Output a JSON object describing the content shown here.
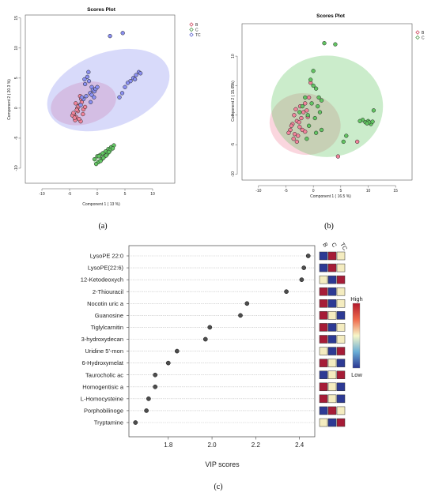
{
  "panels": {
    "a": {
      "caption": "(a)"
    },
    "b": {
      "caption": "(b)"
    },
    "c": {
      "caption": "(c)"
    }
  },
  "colors": {
    "B": "#f0839a",
    "C": "#62c462",
    "TC": "#8a8ff0",
    "B_dark": "#c8364f",
    "C_dark": "#3c8e3c",
    "TC_dark": "#4e57c9"
  },
  "chart_data": [
    {
      "type": "scatter",
      "title": "Scores Plot",
      "xlabel": "Component 1 ( 13 %)",
      "ylabel": "Component 2 ( 20.3 %)",
      "xlim": [
        -13,
        14
      ],
      "ylim": [
        -12.5,
        15.5
      ],
      "xticks": [
        -10,
        -5,
        0,
        5,
        10
      ],
      "yticks": [
        -10,
        -5,
        0,
        5,
        10,
        15
      ],
      "legend_position": "top-right",
      "series": [
        {
          "name": "B",
          "color": "#f0839a",
          "x": [
            -4.2,
            -3.8,
            -3.5,
            -4.0,
            -3.2,
            -2.8,
            -3.6,
            -4.5,
            -3.0,
            -2.5,
            -3.9,
            -4.3,
            -2.9,
            -3.3,
            -3.7,
            -2.2,
            -4.1,
            -3.4,
            -2.6,
            -3.1
          ],
          "y": [
            -1.0,
            -1.5,
            -0.5,
            -2.0,
            0.5,
            1.0,
            0.0,
            -1.2,
            -2.2,
            -0.2,
            0.8,
            -0.8,
            1.5,
            -1.8,
            -0.3,
            0.2,
            -1.6,
            0.3,
            -1.0,
            2.0
          ],
          "ellipse": {
            "cx": -2.5,
            "cy": 0.8,
            "rx": 6.0,
            "ry": 3.5,
            "angle": 14
          }
        },
        {
          "name": "C",
          "color": "#62c462",
          "x": [
            -0.5,
            0.0,
            0.5,
            1.0,
            1.5,
            2.0,
            2.5,
            3.0,
            0.2,
            0.8,
            1.3,
            1.8,
            2.3,
            -0.2,
            0.6,
            1.1,
            1.6,
            2.1,
            2.8,
            0.3
          ],
          "y": [
            -8.5,
            -8.0,
            -7.8,
            -7.5,
            -7.2,
            -6.8,
            -6.5,
            -6.2,
            -9.0,
            -8.5,
            -8.0,
            -7.6,
            -7.0,
            -9.3,
            -8.8,
            -8.3,
            -7.9,
            -7.3,
            -6.7,
            -8.0
          ],
          "ellipse": {
            "cx": 1.1,
            "cy": -7.9,
            "rx": 2.2,
            "ry": 0.6,
            "angle": 38
          }
        },
        {
          "name": "TC",
          "color": "#8a8ff0",
          "x": [
            2.3,
            4.6,
            -2.3,
            -1.8,
            -1.5,
            -1.0,
            -0.8,
            -0.5,
            -1.3,
            -2.0,
            -2.5,
            -1.2,
            -0.3,
            0.0,
            -1.6,
            -2.2,
            -1.0,
            -0.6,
            6.0,
            6.5,
            7.0,
            7.5,
            6.8,
            7.8,
            5.5,
            5.0,
            4.5,
            4.0,
            -3.0,
            -2.8
          ],
          "y": [
            12.0,
            12.5,
            4.8,
            5.2,
            4.5,
            3.5,
            3.0,
            2.8,
            2.5,
            2.0,
            1.5,
            1.0,
            3.2,
            3.5,
            6.0,
            4.0,
            2.2,
            1.8,
            4.5,
            5.0,
            5.5,
            6.0,
            4.8,
            5.8,
            4.2,
            3.5,
            2.5,
            1.8,
            0.5,
            1.8
          ],
          "ellipse": {
            "cx": 2.0,
            "cy": 3.0,
            "rx": 11.5,
            "ry": 6.2,
            "angle": 20
          }
        }
      ]
    },
    {
      "type": "scatter",
      "title": "Scores Plot",
      "xlabel": "Component 1 ( 16.5 %)",
      "ylabel": "Component 2 ( 15.6 %)",
      "xlim": [
        -13,
        18
      ],
      "ylim": [
        -11,
        15.5
      ],
      "xticks": [
        -10,
        -5,
        0,
        5,
        10,
        15
      ],
      "yticks": [
        -10,
        -5,
        0,
        5,
        10
      ],
      "legend_position": "top-right",
      "series": [
        {
          "name": "B",
          "color": "#f0839a",
          "x": [
            -4.2,
            -3.8,
            -3.0,
            -2.5,
            -4.5,
            -3.5,
            -1.8,
            -2.2,
            -3.2,
            -4.0,
            -1.5,
            -2.8,
            -3.6,
            -1.0,
            -2.0,
            -0.5,
            -3.0,
            -2.4,
            -1.2,
            4.5,
            8.0,
            -0.8,
            -1.5,
            -2.6,
            -3.4
          ],
          "y": [
            -2.5,
            -1.5,
            -1.0,
            -2.0,
            -3.0,
            0.0,
            0.5,
            -0.5,
            1.0,
            -1.8,
            2.0,
            -3.5,
            -4.0,
            -0.3,
            -2.5,
            5.5,
            -4.5,
            1.5,
            0.8,
            -7.0,
            -4.5,
            3.0,
            -2.8,
            -1.2,
            -3.2
          ],
          "ellipse": {
            "cx": -1.5,
            "cy": -1.5,
            "rx": 6.5,
            "ry": 5.2,
            "angle": -10
          }
        },
        {
          "name": "C",
          "color": "#62c462",
          "x": [
            2.0,
            4.0,
            0.0,
            -0.5,
            0.5,
            1.0,
            1.5,
            0.8,
            -1.0,
            0.3,
            -0.3,
            1.2,
            9.5,
            10.0,
            10.5,
            11.0,
            9.0,
            8.5,
            10.2,
            9.8,
            6.0,
            5.5,
            -1.5,
            -2.0,
            -2.5,
            0.0,
            1.5,
            -0.8,
            0.5,
            -1.2,
            10.8
          ],
          "y": [
            12.2,
            12.0,
            7.5,
            6.0,
            4.5,
            3.0,
            2.5,
            1.5,
            0.0,
            -0.5,
            2.0,
            0.5,
            -1.2,
            -1.0,
            -1.5,
            0.8,
            -0.8,
            -1.0,
            -1.2,
            -1.4,
            -3.5,
            -4.5,
            3.0,
            1.5,
            0.5,
            5.0,
            -2.5,
            -1.8,
            -3.0,
            -4.0,
            -1.1
          ],
          "ellipse": {
            "cx": 2.5,
            "cy": 1.5,
            "rx": 10.2,
            "ry": 8.6,
            "angle": 0
          }
        }
      ]
    },
    {
      "type": "dot",
      "xlabel": "VIP scores",
      "xlim": [
        1.62,
        2.47
      ],
      "xticks": [
        1.8,
        2.0,
        2.2,
        2.4
      ],
      "categories": [
        "LysoPE 22:0",
        "LysoPE(22:6)",
        "12-Ketodeoxych",
        "2-Thiouracil",
        "Nocotin uric a",
        "Guanosine",
        "Tiglylcarnitin",
        "3-hydroxydecan",
        "Uridine 5'-mon",
        "6-Hydroxymelat",
        "Taurocholic ac",
        "Homogentisic a",
        "L-Homocysteine",
        "Porphobilinoge",
        "Tryptamine"
      ],
      "values": [
        2.44,
        2.42,
        2.41,
        2.34,
        2.16,
        2.13,
        1.99,
        1.97,
        1.84,
        1.8,
        1.74,
        1.74,
        1.71,
        1.7,
        1.65
      ],
      "heatmap_columns": [
        "B",
        "C",
        "TC"
      ],
      "heatmap_levels": [
        [
          0,
          1,
          0.5
        ],
        [
          0,
          1,
          0.5
        ],
        [
          0.5,
          0,
          1
        ],
        [
          1,
          0,
          0.5
        ],
        [
          1,
          0,
          0.5
        ],
        [
          1,
          0.5,
          0
        ],
        [
          1,
          0,
          0.5
        ],
        [
          1,
          0,
          0.5
        ],
        [
          0.5,
          0,
          1
        ],
        [
          1,
          0.5,
          0
        ],
        [
          0,
          0.5,
          1
        ],
        [
          1,
          0.5,
          0
        ],
        [
          1,
          0.5,
          0
        ],
        [
          0,
          1,
          0.5
        ],
        [
          0.5,
          0,
          1
        ]
      ],
      "colorbar": {
        "high": "High",
        "low": "Low"
      }
    }
  ]
}
